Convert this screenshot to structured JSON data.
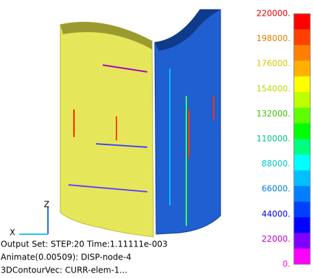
{
  "legend": {
    "labels": [
      "220000.",
      "198000.",
      "176000.",
      "154000.",
      "132000.",
      "110000.",
      "88000.",
      "66000.",
      "44000.",
      "22000.",
      "0."
    ],
    "label_colors": [
      "#e00000",
      "#e08000",
      "#d8c800",
      "#b8d800",
      "#40c000",
      "#00c880",
      "#00c8c8",
      "#0080d0",
      "#0000e0",
      "#c000c0",
      "#ff00ff"
    ],
    "colors": [
      "#ff0000",
      "#ff4000",
      "#ff8000",
      "#ffb000",
      "#ffff00",
      "#c0ff00",
      "#60ff00",
      "#00ff00",
      "#00ff80",
      "#00ffff",
      "#00c0ff",
      "#0080ff",
      "#0040ff",
      "#0000ff",
      "#8000ff",
      "#ff00ff"
    ]
  },
  "triad": {
    "z": "Z",
    "x": "X"
  },
  "info": [
    "Output Set: STEP:20 Time:1.11111e-003",
    "Animate(0.00509): DISP-node-4",
    "3DContourVec: CURR-elem-1..."
  ]
}
